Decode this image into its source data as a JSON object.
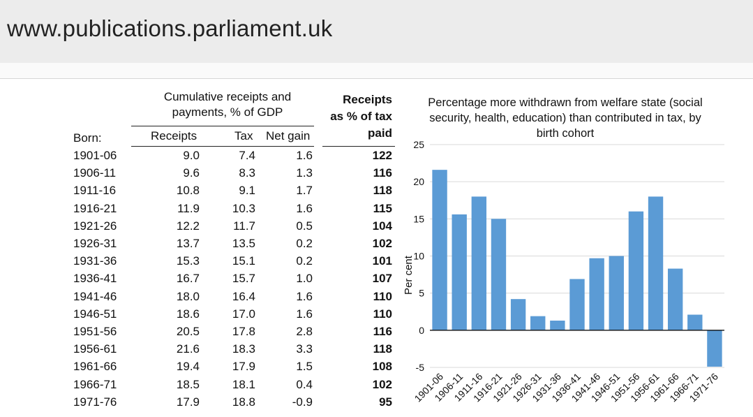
{
  "browser": {
    "url": "www.publications.parliament.uk"
  },
  "table": {
    "group_header_line1": "Cumulative receipts and",
    "group_header_line2": "payments, % of GDP",
    "receipts_pct_header_line1": "Receipts",
    "receipts_pct_header_line2": "as % of tax",
    "receipts_pct_header_line3": "paid",
    "born_label": "Born:",
    "col_receipts": "Receipts",
    "col_tax": "Tax",
    "col_net": "Net gain",
    "rows": [
      {
        "born": "1901-06",
        "receipts": "9.0",
        "tax": "7.4",
        "net": "1.6",
        "pct": "122"
      },
      {
        "born": "1906-11",
        "receipts": "9.6",
        "tax": "8.3",
        "net": "1.3",
        "pct": "116"
      },
      {
        "born": "1911-16",
        "receipts": "10.8",
        "tax": "9.1",
        "net": "1.7",
        "pct": "118"
      },
      {
        "born": "1916-21",
        "receipts": "11.9",
        "tax": "10.3",
        "net": "1.6",
        "pct": "115"
      },
      {
        "born": "1921-26",
        "receipts": "12.2",
        "tax": "11.7",
        "net": "0.5",
        "pct": "104"
      },
      {
        "born": "1926-31",
        "receipts": "13.7",
        "tax": "13.5",
        "net": "0.2",
        "pct": "102"
      },
      {
        "born": "1931-36",
        "receipts": "15.3",
        "tax": "15.1",
        "net": "0.2",
        "pct": "101"
      },
      {
        "born": "1936-41",
        "receipts": "16.7",
        "tax": "15.7",
        "net": "1.0",
        "pct": "107"
      },
      {
        "born": "1941-46",
        "receipts": "18.0",
        "tax": "16.4",
        "net": "1.6",
        "pct": "110"
      },
      {
        "born": "1946-51",
        "receipts": "18.6",
        "tax": "17.0",
        "net": "1.6",
        "pct": "110"
      },
      {
        "born": "1951-56",
        "receipts": "20.5",
        "tax": "17.8",
        "net": "2.8",
        "pct": "116"
      },
      {
        "born": "1956-61",
        "receipts": "21.6",
        "tax": "18.3",
        "net": "3.3",
        "pct": "118"
      },
      {
        "born": "1961-66",
        "receipts": "19.4",
        "tax": "17.9",
        "net": "1.5",
        "pct": "108"
      },
      {
        "born": "1966-71",
        "receipts": "18.5",
        "tax": "18.1",
        "net": "0.4",
        "pct": "102"
      },
      {
        "born": "1971-76",
        "receipts": "17.9",
        "tax": "18.8",
        "net": "-0.9",
        "pct": "95"
      }
    ]
  },
  "chart_data": {
    "type": "bar",
    "title_lines": [
      "Percentage more withdrawn from welfare state (social",
      "security, health, education) than contributed in tax, by",
      "birth cohort"
    ],
    "ylabel": "Per cent",
    "xlabel": "",
    "ylim": [
      -5,
      25
    ],
    "yticks": [
      25,
      20,
      15,
      10,
      5,
      0,
      -5
    ],
    "categories": [
      "1901-06",
      "1906-11",
      "1911-16",
      "1916-21",
      "1921-26",
      "1926-31",
      "1931-36",
      "1936-41",
      "1941-46",
      "1946-51",
      "1951-56",
      "1956-61",
      "1961-66",
      "1966-71",
      "1971-76"
    ],
    "values": [
      21.6,
      15.6,
      18.0,
      15.0,
      4.2,
      1.9,
      1.3,
      6.9,
      9.7,
      10.0,
      16.0,
      18.0,
      8.3,
      2.1,
      -4.9
    ],
    "bar_color": "#5b9bd5",
    "grid": true
  }
}
